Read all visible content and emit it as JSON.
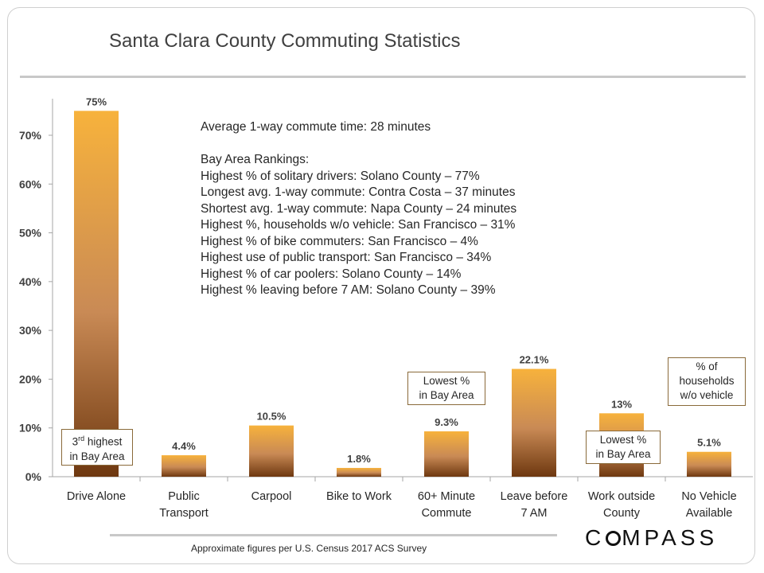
{
  "title": "Santa Clara County Commuting Statistics",
  "notes": {
    "average": "Average 1-way commute time: 28 minutes",
    "rankings_title": "Bay Area Rankings:",
    "rankings": [
      "Highest % of solitary drivers: Solano County – 77%",
      "Longest avg. 1-way commute: Contra Costa – 37 minutes",
      "Shortest avg. 1-way commute: Napa County – 24 minutes",
      "Highest %, households w/o vehicle: San Francisco – 31%",
      "Highest % of bike commuters: San Francisco – 4%",
      "Highest use of public transport: San Francisco – 34%",
      "Highest % of car poolers: Solano County – 14%",
      "Highest % leaving before 7 AM: Solano County – 39%"
    ]
  },
  "callouts": {
    "drive_alone": {
      "line1_main": "3",
      "line1_sup": "rd",
      "line1_rest": " highest",
      "line2": "in Bay Area"
    },
    "commute_60": {
      "line1": "Lowest %",
      "line2": "in Bay Area"
    },
    "work_outside": {
      "line1": "Lowest %",
      "line2": "in Bay Area"
    },
    "no_vehicle": {
      "line1": "% of",
      "line2": "households",
      "line3": "w/o vehicle"
    }
  },
  "source": "Approximate figures per U.S. Census 2017 ACS Survey",
  "logo": {
    "text_before": "C",
    "text_after": "MPASS",
    "name": "COMPASS"
  },
  "colors": {
    "bar_top": "#f7b23c",
    "bar_mid": "#c98a55",
    "bar_bottom": "#6e3810"
  },
  "chart_data": {
    "type": "bar",
    "categories": [
      [
        "Drive Alone"
      ],
      [
        "Public",
        "Transport"
      ],
      [
        "Carpool"
      ],
      [
        "Bike to Work"
      ],
      [
        "60+ Minute",
        "Commute"
      ],
      [
        "Leave before",
        "7 AM"
      ],
      [
        "Work outside",
        "County"
      ],
      [
        "No Vehicle",
        "Available"
      ]
    ],
    "values": [
      75,
      4.4,
      10.5,
      1.8,
      9.3,
      22.1,
      13,
      5.1
    ],
    "value_labels": [
      "75%",
      "4.4%",
      "10.5%",
      "1.8%",
      "9.3%",
      "22.1%",
      "13%",
      "5.1%"
    ],
    "yticks": [
      "0%",
      "10%",
      "20%",
      "30%",
      "40%",
      "50%",
      "60%",
      "70%"
    ],
    "ylim": [
      0,
      77.5
    ],
    "grid": false
  }
}
